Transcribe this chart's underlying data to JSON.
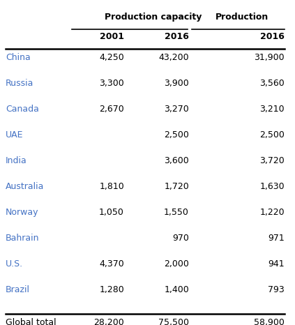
{
  "col_header_row1_left": "Production capacity",
  "col_header_row1_right": "Production",
  "col_header_row2": [
    "2001",
    "2016",
    "2016"
  ],
  "rows": [
    [
      "China",
      "4,250",
      "43,200",
      "31,900"
    ],
    [
      "Russia",
      "3,300",
      "3,900",
      "3,560"
    ],
    [
      "Canada",
      "2,670",
      "3,270",
      "3,210"
    ],
    [
      "UAE",
      "",
      "2,500",
      "2,500"
    ],
    [
      "India",
      "",
      "3,600",
      "3,720"
    ],
    [
      "Australia",
      "1,810",
      "1,720",
      "1,630"
    ],
    [
      "Norway",
      "1,050",
      "1,550",
      "1,220"
    ],
    [
      "Bahrain",
      "",
      "970",
      "971"
    ],
    [
      "U.S.",
      "4,370",
      "2,000",
      "941"
    ],
    [
      "Brazil",
      "1,280",
      "1,400",
      "793"
    ]
  ],
  "footer": [
    "Global total",
    "28,200",
    "75,500",
    "58,900"
  ],
  "country_color": "#4472C4",
  "data_color": "#000000",
  "header_color": "#000000",
  "bg_color": "#ffffff",
  "line_color": "#000000",
  "font_size": 9.0
}
